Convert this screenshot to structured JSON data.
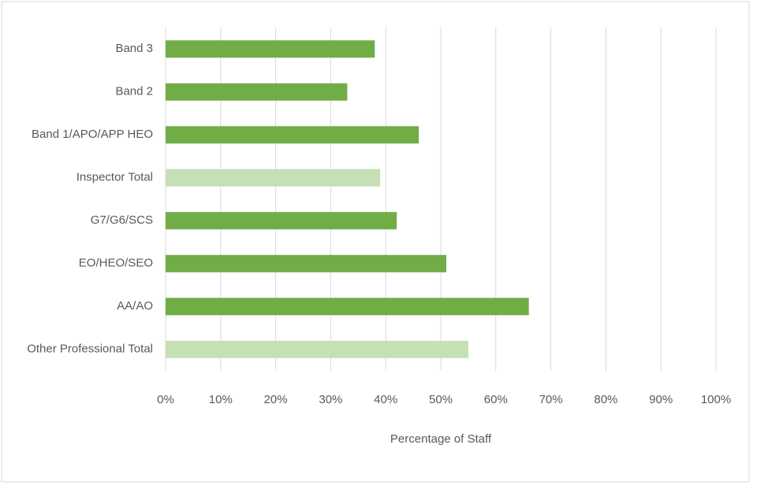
{
  "chart_data": {
    "type": "bar",
    "orientation": "horizontal",
    "x_label": "Percentage of Staff",
    "categories": [
      "Band 3",
      "Band 2",
      "Band 1/APO/APP HEO",
      "Inspector Total",
      "G7/G6/SCS",
      "EO/HEO/SEO",
      "AA/AO",
      "Other Professional Total"
    ],
    "values": [
      38,
      33,
      46,
      39,
      42,
      51,
      66,
      55
    ],
    "colors": [
      "#70ad47",
      "#70ad47",
      "#70ad47",
      "#c5e0b4",
      "#70ad47",
      "#70ad47",
      "#70ad47",
      "#c5e0b4"
    ],
    "xlim": [
      0,
      100
    ],
    "xticks": [
      {
        "value": 0,
        "label": "0%"
      },
      {
        "value": 10,
        "label": "10%"
      },
      {
        "value": 20,
        "label": "20%"
      },
      {
        "value": 30,
        "label": "30%"
      },
      {
        "value": 40,
        "label": "40%"
      },
      {
        "value": 50,
        "label": "50%"
      },
      {
        "value": 60,
        "label": "60%"
      },
      {
        "value": 70,
        "label": "70%"
      },
      {
        "value": 80,
        "label": "80%"
      },
      {
        "value": 90,
        "label": "90%"
      },
      {
        "value": 100,
        "label": "100%"
      }
    ],
    "grid": true
  }
}
